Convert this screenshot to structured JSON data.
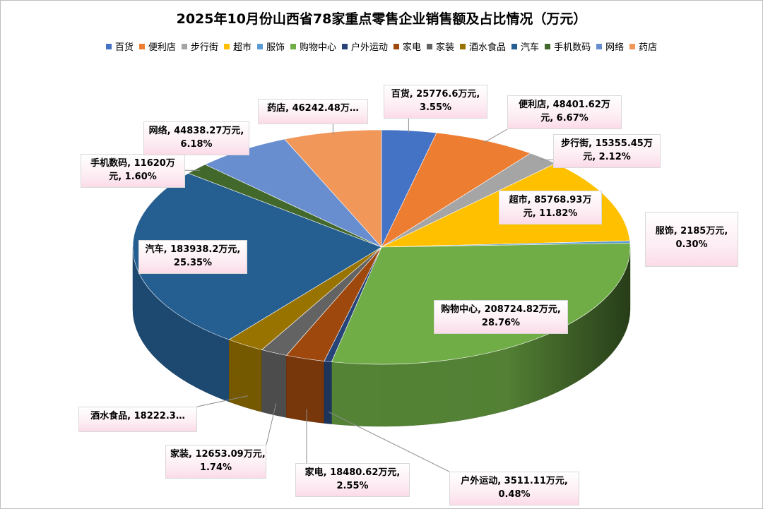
{
  "title": "2025年10月份山西省78家重点零售企业销售额及占比情况（万元）",
  "chart_data": {
    "type": "pie",
    "title": "2025年10月份山西省78家重点零售企业销售额及占比情况（万元）",
    "legend_position": "top",
    "unit": "万元",
    "categories": [
      "百货",
      "便利店",
      "步行街",
      "超市",
      "服饰",
      "购物中心",
      "户外运动",
      "家电",
      "家装",
      "酒水食品",
      "汽车",
      "手机数码",
      "网络",
      "药店"
    ],
    "values": [
      25776.6,
      48401.62,
      15355.45,
      85768.93,
      2185,
      208724.82,
      3511.11,
      18480.62,
      12653.09,
      18222.3,
      183938.2,
      11620,
      44838.27,
      46242.48
    ],
    "percents": [
      "3.55%",
      "6.67%",
      "2.12%",
      "11.82%",
      "0.30%",
      "28.76%",
      "0.48%",
      "2.55%",
      "1.74%",
      "2.51%",
      "25.35%",
      "1.60%",
      "6.18%",
      "6.37%"
    ],
    "colors": [
      "#4472c4",
      "#ed7d31",
      "#a5a5a5",
      "#ffc000",
      "#5b9bd5",
      "#70ad47",
      "#264478",
      "#9e480e",
      "#636363",
      "#997300",
      "#255e91",
      "#43682b",
      "#698ed0",
      "#f1975a"
    ],
    "labels": [
      {
        "line1": "百货, 25776.6万元,",
        "line2": "3.55%"
      },
      {
        "line1": "便利店, 48401.62万",
        "line2": "元, 6.67%"
      },
      {
        "line1": "步行街, 15355.45万",
        "line2": "元, 2.12%"
      },
      {
        "line1": "超市, 85768.93万",
        "line2": "元, 11.82%"
      },
      {
        "line1": "服饰, 2185万元,",
        "line2": "0.30%"
      },
      {
        "line1": "购物中心, 208724.82万元,",
        "line2": "28.76%"
      },
      {
        "line1": "户外运动, 3511.11万元,",
        "line2": "0.48%"
      },
      {
        "line1": "家电, 18480.62万元,",
        "line2": "2.55%"
      },
      {
        "line1": "家装, 12653.09万元,",
        "line2": "1.74%"
      },
      {
        "line1": "酒水食品, 18222.3…",
        "line2": ""
      },
      {
        "line1": "汽车, 183938.2万元,",
        "line2": "25.35%"
      },
      {
        "line1": "手机数码, 11620万",
        "line2": "元, 1.60%"
      },
      {
        "line1": "网络, 44838.27万元,",
        "line2": "6.18%"
      },
      {
        "line1": "药店, 46242.48万…",
        "line2": ""
      }
    ]
  }
}
